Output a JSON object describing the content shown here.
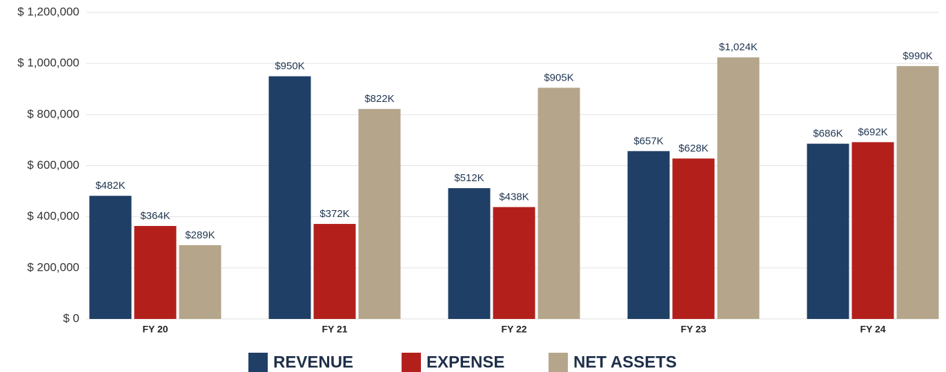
{
  "chart_data": {
    "type": "bar",
    "categories": [
      "FY 20",
      "FY 21",
      "FY 22",
      "FY 23",
      "FY 24"
    ],
    "series": [
      {
        "name": "REVENUE",
        "color": "#1f3f66",
        "values": [
          482000,
          950000,
          512000,
          657000,
          686000
        ],
        "value_labels": [
          "$482K",
          "$950K",
          "$512K",
          "$657K",
          "$686K"
        ]
      },
      {
        "name": "EXPENSE",
        "color": "#b3201c",
        "values": [
          364000,
          372000,
          438000,
          628000,
          692000
        ],
        "value_labels": [
          "$364K",
          "$372K",
          "$438K",
          "$628K",
          "$692K"
        ]
      },
      {
        "name": "NET ASSETS",
        "color": "#b5a68b",
        "values": [
          289000,
          822000,
          905000,
          1024000,
          990000
        ],
        "value_labels": [
          "$289K",
          "$822K",
          "$905K",
          "$1,024K",
          "$990K"
        ]
      }
    ],
    "ylim": [
      0,
      1200000
    ],
    "yticks": [
      {
        "value": 0,
        "label": "$ 0"
      },
      {
        "value": 200000,
        "label": "$ 200,000"
      },
      {
        "value": 400000,
        "label": "$ 400,000"
      },
      {
        "value": 600000,
        "label": "$ 600,000"
      },
      {
        "value": 800000,
        "label": "$ 800,000"
      },
      {
        "value": 1000000,
        "label": "$ 1,000,000"
      },
      {
        "value": 1200000,
        "label": "$ 1,200,000"
      }
    ],
    "grid": true,
    "legend": "bottom"
  }
}
